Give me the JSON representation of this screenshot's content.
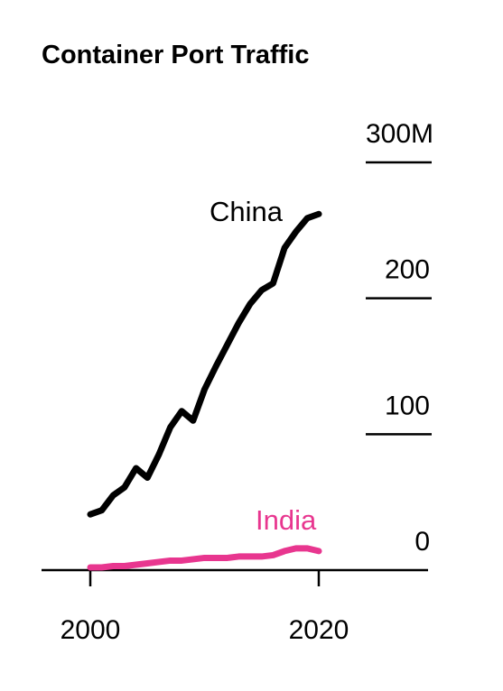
{
  "chart_data": {
    "type": "line",
    "title": "Container Port Traffic",
    "xlabel": "",
    "ylabel": "",
    "xlim": [
      1998,
      2029
    ],
    "ylim": [
      0,
      300
    ],
    "x_ticks": [
      2000,
      2020
    ],
    "x_tick_labels": [
      "2000",
      "2020"
    ],
    "y_ticks": [
      0,
      100,
      200,
      300
    ],
    "y_tick_labels": [
      "0",
      "100",
      "200",
      "300M"
    ],
    "grid": false,
    "colors": {
      "China": "#000000",
      "India": "#e8368f",
      "axis": "#000000"
    },
    "series": [
      {
        "name": "China",
        "x": [
          2000,
          2001,
          2002,
          2003,
          2004,
          2005,
          2006,
          2007,
          2008,
          2009,
          2010,
          2011,
          2012,
          2013,
          2014,
          2015,
          2016,
          2017,
          2018,
          2019,
          2020
        ],
        "values": [
          41,
          44,
          55,
          61,
          75,
          68,
          85,
          105,
          117,
          110,
          133,
          150,
          166,
          182,
          196,
          206,
          211,
          237,
          249,
          259,
          262
        ]
      },
      {
        "name": "India",
        "x": [
          2000,
          2001,
          2002,
          2003,
          2004,
          2005,
          2006,
          2007,
          2008,
          2009,
          2010,
          2011,
          2012,
          2013,
          2014,
          2015,
          2016,
          2017,
          2018,
          2019,
          2020
        ],
        "values": [
          2,
          2,
          3,
          3,
          4,
          5,
          6,
          7,
          7,
          8,
          9,
          9,
          9,
          10,
          10,
          10,
          11,
          14,
          16,
          16,
          14
        ]
      }
    ]
  }
}
